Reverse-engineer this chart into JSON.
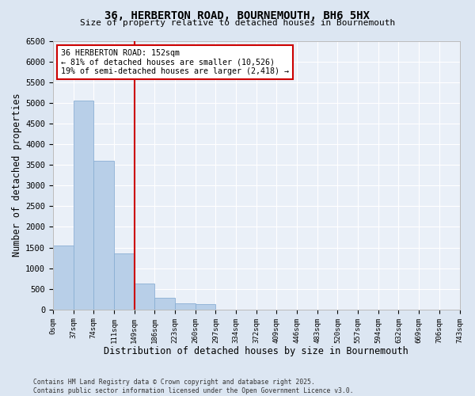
{
  "title_line1": "36, HERBERTON ROAD, BOURNEMOUTH, BH6 5HX",
  "title_line2": "Size of property relative to detached houses in Bournemouth",
  "xlabel": "Distribution of detached houses by size in Bournemouth",
  "ylabel": "Number of detached properties",
  "annotation_title": "36 HERBERTON ROAD: 152sqm",
  "annotation_line2": "← 81% of detached houses are smaller (10,526)",
  "annotation_line3": "19% of semi-detached houses are larger (2,418) →",
  "property_size_bin": 4,
  "footnote1": "Contains HM Land Registry data © Crown copyright and database right 2025.",
  "footnote2": "Contains public sector information licensed under the Open Government Licence v3.0.",
  "bar_color": "#b8cfe8",
  "bar_edge_color": "#8aafd4",
  "vline_color": "#cc0000",
  "annotation_box_color": "#cc0000",
  "plot_bg_color": "#eaf0f8",
  "fig_bg_color": "#dce6f2",
  "grid_color": "#ffffff",
  "bin_labels": [
    "0sqm",
    "37sqm",
    "74sqm",
    "111sqm",
    "149sqm",
    "186sqm",
    "223sqm",
    "260sqm",
    "297sqm",
    "334sqm",
    "372sqm",
    "409sqm",
    "446sqm",
    "483sqm",
    "520sqm",
    "557sqm",
    "594sqm",
    "632sqm",
    "669sqm",
    "706sqm",
    "743sqm"
  ],
  "bar_heights": [
    1550,
    5050,
    3600,
    1350,
    620,
    290,
    160,
    140,
    0,
    0,
    0,
    0,
    0,
    0,
    0,
    0,
    0,
    0,
    0,
    0
  ],
  "ylim": [
    0,
    6500
  ],
  "yticks": [
    0,
    500,
    1000,
    1500,
    2000,
    2500,
    3000,
    3500,
    4000,
    4500,
    5000,
    5500,
    6000,
    6500
  ],
  "n_bars": 20
}
